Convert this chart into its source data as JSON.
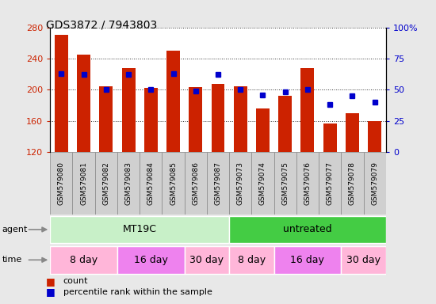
{
  "title": "GDS3872 / 7943803",
  "samples": [
    "GSM579080",
    "GSM579081",
    "GSM579082",
    "GSM579083",
    "GSM579084",
    "GSM579085",
    "GSM579086",
    "GSM579087",
    "GSM579073",
    "GSM579074",
    "GSM579075",
    "GSM579076",
    "GSM579077",
    "GSM579078",
    "GSM579079"
  ],
  "counts": [
    270,
    245,
    204,
    228,
    202,
    250,
    203,
    207,
    204,
    176,
    192,
    228,
    157,
    170,
    160
  ],
  "percentile_ranks": [
    63,
    62,
    50,
    62,
    50,
    63,
    49,
    62,
    50,
    46,
    48,
    50,
    38,
    45,
    40
  ],
  "y_min": 120,
  "y_max": 280,
  "y_ticks": [
    120,
    160,
    200,
    240,
    280
  ],
  "y2_ticks": [
    0,
    25,
    50,
    75,
    100
  ],
  "agent_groups": [
    {
      "label": "MT19C",
      "start": 0,
      "end": 8,
      "color": "#C8F0C8"
    },
    {
      "label": "untreated",
      "start": 8,
      "end": 15,
      "color": "#44CC44"
    }
  ],
  "time_groups": [
    {
      "label": "8 day",
      "start": 0,
      "end": 3,
      "color": "#FFB6D9"
    },
    {
      "label": "16 day",
      "start": 3,
      "end": 6,
      "color": "#EE82EE"
    },
    {
      "label": "30 day",
      "start": 6,
      "end": 8,
      "color": "#FFB6D9"
    },
    {
      "label": "8 day",
      "start": 8,
      "end": 10,
      "color": "#FFB6D9"
    },
    {
      "label": "16 day",
      "start": 10,
      "end": 13,
      "color": "#EE82EE"
    },
    {
      "label": "30 day",
      "start": 13,
      "end": 15,
      "color": "#FFB6D9"
    }
  ],
  "bar_color": "#CC2200",
  "dot_color": "#0000CC",
  "bg_color": "#E8E8E8",
  "plot_bg": "#FFFFFF",
  "grid_color": "#000000",
  "left_label_color": "#CC2200",
  "right_label_color": "#0000CC",
  "tick_label_bg": "#D0D0D0"
}
